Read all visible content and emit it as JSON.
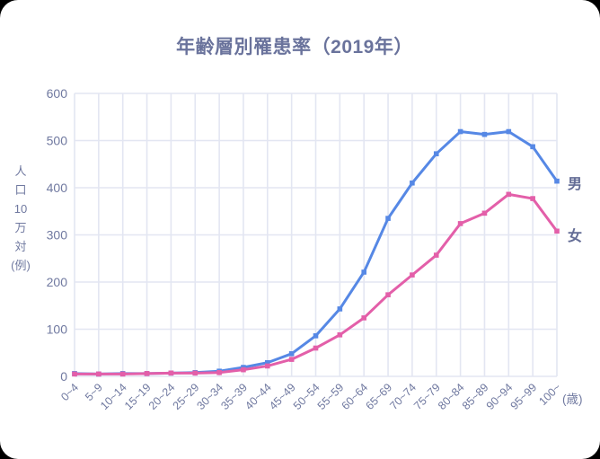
{
  "chart_data": {
    "type": "line",
    "title": "年齢層別罹患率（2019年）",
    "ylabel": "人口10万対(例)",
    "ylabel_lines": [
      "人",
      "口",
      "10",
      "万",
      "対",
      "(例)"
    ],
    "x_unit_label": "(歳)",
    "categories": [
      "0~4",
      "5~9",
      "10~14",
      "15~19",
      "20~24",
      "25~29",
      "30~34",
      "35~39",
      "40~44",
      "45~49",
      "50~54",
      "55~59",
      "60~64",
      "65~69",
      "70~74",
      "75~79",
      "80~84",
      "85~89",
      "90~94",
      "95~99",
      "100~"
    ],
    "series": [
      {
        "name": "男",
        "color": "#5688e5",
        "values": [
          6,
          5,
          6,
          6,
          7,
          8,
          11,
          19,
          29,
          48,
          86,
          143,
          221,
          335,
          410,
          472,
          519,
          513,
          519,
          487,
          414
        ]
      },
      {
        "name": "女",
        "color": "#e35fa9",
        "values": [
          5,
          5,
          5,
          6,
          7,
          7,
          8,
          14,
          22,
          36,
          60,
          88,
          124,
          173,
          215,
          257,
          324,
          346,
          386,
          377,
          308
        ]
      }
    ],
    "ylim": [
      0,
      600
    ],
    "yticks": [
      0,
      100,
      200,
      300,
      400,
      500,
      600
    ],
    "grid": true,
    "legend_position": "labels at right ends of lines"
  },
  "colors": {
    "page_background": "#000000",
    "card_background": "#ffffff",
    "title_text": "#6a739c",
    "tick_labels": "#7079a0",
    "gridlines": "#e3e6f2",
    "male_line": "#5688e5",
    "female_line": "#e35fa9"
  }
}
